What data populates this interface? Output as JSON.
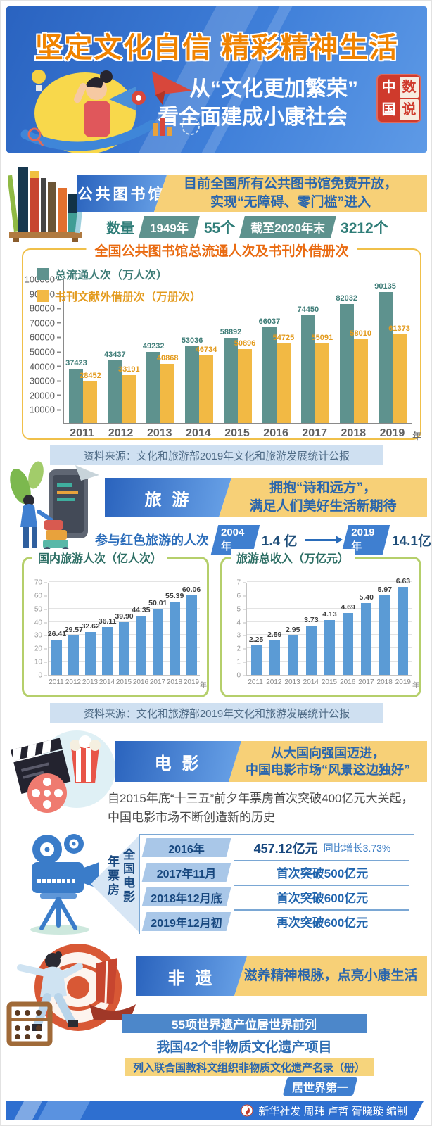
{
  "header": {
    "title": "坚定文化自信 精彩精神生活",
    "subtitle_line1": "从“文化更加繁荣”",
    "subtitle_line2": "看全面建成小康社会",
    "seal": {
      "c1": "中",
      "c2": "数",
      "c3": "国",
      "c4": "说"
    }
  },
  "library": {
    "section_label": "公共图书馆",
    "banner_line1": "目前全国所有公共图书馆免费开放，",
    "banner_line2": "实现“无障碍、零门槛”进入",
    "stats_label": "数量",
    "stat1_badge": "1949年",
    "stat1_value": "55个",
    "stat2_badge": "截至2020年末",
    "stat2_value": "3212个",
    "source": "资料来源：文化和旅游部2019年文化和旅游发展统计公报"
  },
  "tourism": {
    "section_label": "旅 游",
    "banner_line1": "拥抱“诗和远方”，",
    "banner_line2": "满足人们美好生活新期待",
    "red_label": "参与红色旅游的人次",
    "stat1_badge": "2004年",
    "stat1_value": "1.4 亿",
    "stat2_badge": "2019年",
    "stat2_value": "14.1亿",
    "source": "资料来源：文化和旅游部2019年文化和旅游发展统计公报"
  },
  "movie": {
    "section_label": "电 影",
    "banner_line1": "从大国向强国迈进，",
    "banner_line2": "中国电影市场“风景这边独好”",
    "para_line1": "自2015年底“十三五”前夕年票房首次突破400亿元大关起，",
    "para_line2": "中国电影市场不断创造新的历史",
    "label_col_right": "全国电影",
    "label_col_left": "年票房",
    "rows": [
      {
        "period": "2016年",
        "value": "457.12亿元",
        "note": "同比增长3.73%"
      },
      {
        "period": "2017年11月",
        "value": "首次突破500亿元",
        "note": ""
      },
      {
        "period": "2018年12月底",
        "value": "首次突破600亿元",
        "note": ""
      },
      {
        "period": "2019年12月初",
        "value": "再次突破600亿元",
        "note": ""
      }
    ]
  },
  "heritage": {
    "section_label": "非 遗",
    "banner_line1": "滋养精神根脉，点亮小康生活",
    "stat_bar1": "55项世界遗产位居世界前列",
    "stat_line2": "我国42个非物质文化遗产项目",
    "stat_bar3": "列入联合国教科文组织非物质文化遗产名录（册）",
    "stat_badge4": "居世界第一"
  },
  "footer": {
    "credit": "新华社发 周玮 卢哲 胥晓璇 编制"
  },
  "colors": {
    "teal": "#5E928E",
    "gold": "#F2B944",
    "bar_blue": "#5b9bd5",
    "banner_blue": "#2a63bd",
    "banner_yellow": "#f7d077",
    "title_orange": "#f08300",
    "seal_red": "#cf3a2c"
  },
  "chart_data": [
    {
      "type": "bar",
      "title": "全国公共图书馆总流通人次及书刊外借册次",
      "categories": [
        "2011",
        "2012",
        "2013",
        "2014",
        "2015",
        "2016",
        "2017",
        "2018",
        "2019"
      ],
      "x_suffix": "年",
      "series": [
        {
          "name": "总流通人次（万人次）",
          "color": "#5E928E",
          "label_color": "#3f7d78",
          "values": [
            37423,
            43437,
            49232,
            53036,
            58892,
            66037,
            74450,
            82032,
            90135
          ]
        },
        {
          "name": "书刊文献外借册次（万册次）",
          "color": "#F2B944",
          "label_color": "#e39b1e",
          "values": [
            28452,
            33191,
            40868,
            46734,
            50896,
            54725,
            55091,
            58010,
            61373
          ]
        }
      ],
      "ylim": [
        0,
        100000
      ],
      "yticks": [
        10000,
        20000,
        30000,
        40000,
        50000,
        60000,
        70000,
        80000,
        90000,
        100000
      ],
      "grid": false,
      "legend_position": "top-left"
    },
    {
      "type": "bar",
      "title": "国内旅游人次（亿人次）",
      "categories": [
        "2011",
        "2012",
        "2013",
        "2014",
        "2015",
        "2016",
        "2017",
        "2018",
        "2019"
      ],
      "x_suffix": "年",
      "values": [
        26.41,
        29.57,
        32.62,
        36.11,
        39.9,
        44.35,
        50.01,
        55.39,
        60.06
      ],
      "labels": [
        "26.41",
        "29.57",
        "32.62",
        "36.11",
        "39.90",
        "44.35",
        "50.01",
        "55.39",
        "60.06"
      ],
      "bar_color": "#5b9bd5",
      "label_color": "#3f3f3f",
      "ylim": [
        0,
        70
      ],
      "yticks": [
        0,
        10,
        20,
        30,
        40,
        50,
        60,
        70
      ],
      "grid": true
    },
    {
      "type": "bar",
      "title": "旅游总收入（万亿元）",
      "categories": [
        "2011",
        "2012",
        "2013",
        "2014",
        "2015",
        "2016",
        "2017",
        "2018",
        "2019"
      ],
      "x_suffix": "年",
      "values": [
        2.25,
        2.59,
        2.95,
        3.73,
        4.13,
        4.69,
        5.4,
        5.97,
        6.63
      ],
      "labels": [
        "2.25",
        "2.59",
        "2.95",
        "3.73",
        "4.13",
        "4.69",
        "5.40",
        "5.97",
        "6.63"
      ],
      "bar_color": "#5b9bd5",
      "label_color": "#3f3f3f",
      "ylim": [
        0,
        7
      ],
      "yticks": [
        0,
        1,
        2,
        3,
        4,
        5,
        6,
        7
      ],
      "grid": true
    }
  ]
}
